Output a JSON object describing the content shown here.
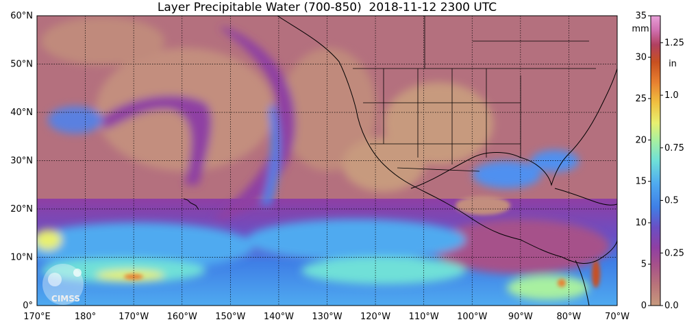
{
  "title": "Layer Precipitable Water (700-850)  2018-11-12 2300 UTC",
  "map": {
    "lat_labels": [
      "60°N",
      "50°N",
      "40°N",
      "30°N",
      "20°N",
      "10°N",
      "0°"
    ],
    "lon_labels": [
      "170°E",
      "180°",
      "170°W",
      "160°W",
      "150°W",
      "140°W",
      "130°W",
      "120°W",
      "110°W",
      "100°W",
      "90°W",
      "80°W",
      "70°W"
    ],
    "lat_range": [
      0,
      60
    ],
    "lon_range_deg_east": [
      170,
      290
    ],
    "grid": true,
    "logo_text": "CIMSS"
  },
  "colorbar": {
    "mm_unit": "mm",
    "in_unit": "in",
    "mm_ticks": [
      "35",
      "30",
      "25",
      "20",
      "15",
      "10",
      "5",
      "0"
    ],
    "in_ticks": [
      "1.25",
      "1.0",
      "0.75",
      "0.5",
      "0.25",
      "0.0"
    ],
    "mm_range": [
      0,
      35
    ],
    "colors": [
      "#c79a7e",
      "#b9747a",
      "#a6518a",
      "#8f3fa3",
      "#6a4fc4",
      "#3f7fe6",
      "#4faaf0",
      "#6fe0d8",
      "#a8f0a0",
      "#e8f070",
      "#f0c040",
      "#e88030",
      "#c85020",
      "#b04060",
      "#d070b0",
      "#e8a0d8"
    ]
  }
}
